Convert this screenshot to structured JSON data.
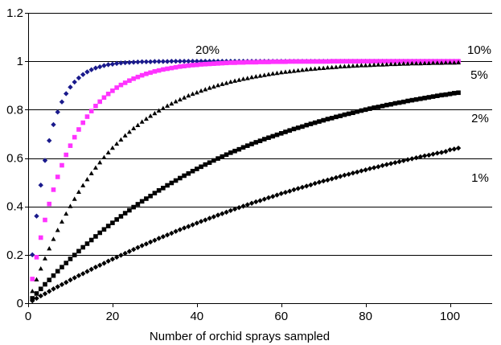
{
  "chart_data": {
    "type": "scatter",
    "title": "",
    "xlabel": "Number of orchid sprays sampled",
    "ylabel": "",
    "xlim": [
      0,
      110
    ],
    "ylim": [
      0,
      1.2
    ],
    "x_ticks": [
      0,
      20,
      40,
      60,
      80,
      100
    ],
    "y_ticks": [
      0,
      0.2,
      0.4,
      0.6,
      0.8,
      1,
      1.2
    ],
    "x_tick_labels": [
      "0",
      "20",
      "40",
      "60",
      "80",
      "100"
    ],
    "y_tick_labels": [
      "0",
      "0.2",
      "0.4",
      "0.6",
      "0.8",
      "1",
      "1.2"
    ],
    "grid": "horizontal",
    "x": [
      1,
      2,
      3,
      4,
      5,
      6,
      7,
      8,
      9,
      10,
      11,
      12,
      13,
      14,
      15,
      16,
      17,
      18,
      19,
      20,
      21,
      22,
      23,
      24,
      25,
      26,
      27,
      28,
      29,
      30,
      31,
      32,
      33,
      34,
      35,
      36,
      37,
      38,
      39,
      40,
      41,
      42,
      43,
      44,
      45,
      46,
      47,
      48,
      49,
      50,
      51,
      52,
      53,
      54,
      55,
      56,
      57,
      58,
      59,
      60,
      61,
      62,
      63,
      64,
      65,
      66,
      67,
      68,
      69,
      70,
      71,
      72,
      73,
      74,
      75,
      76,
      77,
      78,
      79,
      80,
      81,
      82,
      83,
      84,
      85,
      86,
      87,
      88,
      89,
      90,
      91,
      92,
      93,
      94,
      95,
      96,
      97,
      98,
      99,
      100,
      101,
      102
    ],
    "series": [
      {
        "name": "20%",
        "marker": "diamond",
        "color": "#1a1a8c",
        "values": [
          0.2,
          0.36,
          0.488,
          0.59,
          0.672,
          0.738,
          0.79,
          0.832,
          0.866,
          0.893,
          0.914,
          0.931,
          0.945,
          0.956,
          0.965,
          0.972,
          0.977,
          0.982,
          0.986,
          0.988,
          0.991,
          0.993,
          0.994,
          0.995,
          0.996,
          0.997,
          0.998,
          0.998,
          0.998,
          0.999,
          0.999,
          0.999,
          0.999,
          1,
          1,
          1,
          1,
          1,
          1,
          1,
          1,
          1,
          1,
          1,
          1,
          1,
          1,
          1,
          1,
          1,
          1,
          1,
          1,
          1,
          1,
          1,
          1,
          1,
          1,
          1,
          1,
          1,
          1,
          1,
          1,
          1,
          1,
          1,
          1,
          1,
          1,
          1,
          1,
          1,
          1,
          1,
          1,
          1,
          1,
          1,
          1,
          1,
          1,
          1,
          1,
          1,
          1,
          1,
          1,
          1,
          1,
          1,
          1,
          1,
          1,
          1,
          1,
          1,
          1,
          1,
          1,
          1
        ]
      },
      {
        "name": "10%",
        "marker": "square",
        "color": "#ff33ff",
        "values": [
          0.1,
          0.19,
          0.271,
          0.344,
          0.41,
          0.469,
          0.522,
          0.57,
          0.613,
          0.651,
          0.686,
          0.718,
          0.746,
          0.771,
          0.794,
          0.815,
          0.833,
          0.85,
          0.865,
          0.878,
          0.891,
          0.902,
          0.911,
          0.92,
          0.928,
          0.935,
          0.942,
          0.948,
          0.953,
          0.958,
          0.962,
          0.966,
          0.969,
          0.972,
          0.975,
          0.978,
          0.98,
          0.982,
          0.984,
          0.985,
          0.987,
          0.988,
          0.989,
          0.99,
          0.991,
          0.992,
          0.993,
          0.994,
          0.994,
          0.995,
          0.995,
          0.996,
          0.996,
          0.996,
          0.997,
          0.997,
          0.997,
          0.998,
          0.998,
          0.998,
          0.998,
          0.999,
          0.999,
          0.999,
          0.999,
          0.999,
          0.999,
          0.999,
          0.999,
          0.999,
          0.999,
          1,
          1,
          1,
          1,
          1,
          1,
          1,
          1,
          1,
          1,
          1,
          1,
          1,
          1,
          1,
          1,
          1,
          1,
          1,
          1,
          1,
          1,
          1,
          1,
          1,
          1,
          1,
          1,
          1,
          1,
          1
        ]
      },
      {
        "name": "5%",
        "marker": "triangle",
        "color": "#000000",
        "values": [
          0.05,
          0.098,
          0.143,
          0.185,
          0.226,
          0.265,
          0.302,
          0.337,
          0.37,
          0.401,
          0.431,
          0.46,
          0.487,
          0.512,
          0.537,
          0.56,
          0.582,
          0.603,
          0.623,
          0.642,
          0.659,
          0.676,
          0.693,
          0.708,
          0.723,
          0.736,
          0.75,
          0.762,
          0.774,
          0.785,
          0.796,
          0.806,
          0.816,
          0.825,
          0.834,
          0.842,
          0.85,
          0.858,
          0.865,
          0.871,
          0.878,
          0.884,
          0.89,
          0.895,
          0.901,
          0.906,
          0.91,
          0.915,
          0.919,
          0.923,
          0.927,
          0.93,
          0.934,
          0.937,
          0.94,
          0.943,
          0.946,
          0.949,
          0.951,
          0.954,
          0.956,
          0.958,
          0.96,
          0.962,
          0.964,
          0.966,
          0.968,
          0.969,
          0.971,
          0.972,
          0.974,
          0.975,
          0.976,
          0.978,
          0.979,
          0.98,
          0.981,
          0.982,
          0.983,
          0.983,
          0.984,
          0.985,
          0.986,
          0.986,
          0.987,
          0.988,
          0.988,
          0.989,
          0.99,
          0.99,
          0.991,
          0.991,
          0.991,
          0.992,
          0.992,
          0.993,
          0.993,
          0.993,
          0.994,
          0.994,
          0.994,
          0.995
        ]
      },
      {
        "name": "2%",
        "marker": "square",
        "color": "#000000",
        "values": [
          0.02,
          0.04,
          0.059,
          0.078,
          0.096,
          0.114,
          0.132,
          0.149,
          0.166,
          0.183,
          0.199,
          0.215,
          0.231,
          0.246,
          0.261,
          0.276,
          0.291,
          0.305,
          0.319,
          0.332,
          0.346,
          0.359,
          0.372,
          0.384,
          0.397,
          0.409,
          0.421,
          0.432,
          0.443,
          0.455,
          0.466,
          0.476,
          0.487,
          0.497,
          0.507,
          0.517,
          0.527,
          0.536,
          0.546,
          0.555,
          0.564,
          0.573,
          0.581,
          0.59,
          0.598,
          0.606,
          0.614,
          0.622,
          0.629,
          0.636,
          0.644,
          0.651,
          0.658,
          0.665,
          0.671,
          0.678,
          0.684,
          0.69,
          0.696,
          0.702,
          0.708,
          0.714,
          0.72,
          0.725,
          0.73,
          0.736,
          0.741,
          0.746,
          0.751,
          0.756,
          0.761,
          0.765,
          0.77,
          0.774,
          0.779,
          0.783,
          0.787,
          0.792,
          0.796,
          0.8,
          0.804,
          0.808,
          0.811,
          0.815,
          0.819,
          0.822,
          0.826,
          0.829,
          0.832,
          0.836,
          0.839,
          0.842,
          0.845,
          0.848,
          0.851,
          0.854,
          0.857,
          0.86,
          0.862,
          0.865,
          0.868,
          0.87
        ]
      },
      {
        "name": "1%",
        "marker": "diamond",
        "color": "#000000",
        "values": [
          0.01,
          0.02,
          0.03,
          0.039,
          0.049,
          0.059,
          0.068,
          0.077,
          0.086,
          0.096,
          0.105,
          0.114,
          0.122,
          0.131,
          0.14,
          0.149,
          0.157,
          0.165,
          0.174,
          0.182,
          0.19,
          0.198,
          0.206,
          0.214,
          0.222,
          0.23,
          0.238,
          0.245,
          0.253,
          0.26,
          0.268,
          0.275,
          0.282,
          0.289,
          0.297,
          0.304,
          0.311,
          0.317,
          0.324,
          0.331,
          0.338,
          0.344,
          0.351,
          0.357,
          0.364,
          0.37,
          0.376,
          0.383,
          0.389,
          0.395,
          0.401,
          0.407,
          0.413,
          0.419,
          0.424,
          0.43,
          0.436,
          0.441,
          0.447,
          0.453,
          0.458,
          0.463,
          0.469,
          0.474,
          0.479,
          0.484,
          0.489,
          0.495,
          0.5,
          0.505,
          0.509,
          0.514,
          0.519,
          0.524,
          0.529,
          0.533,
          0.538,
          0.542,
          0.547,
          0.551,
          0.556,
          0.56,
          0.564,
          0.569,
          0.573,
          0.577,
          0.581,
          0.585,
          0.589,
          0.593,
          0.597,
          0.601,
          0.605,
          0.609,
          0.612,
          0.616,
          0.62,
          0.623,
          0.627,
          0.634,
          0.637,
          0.641
        ]
      }
    ]
  }
}
